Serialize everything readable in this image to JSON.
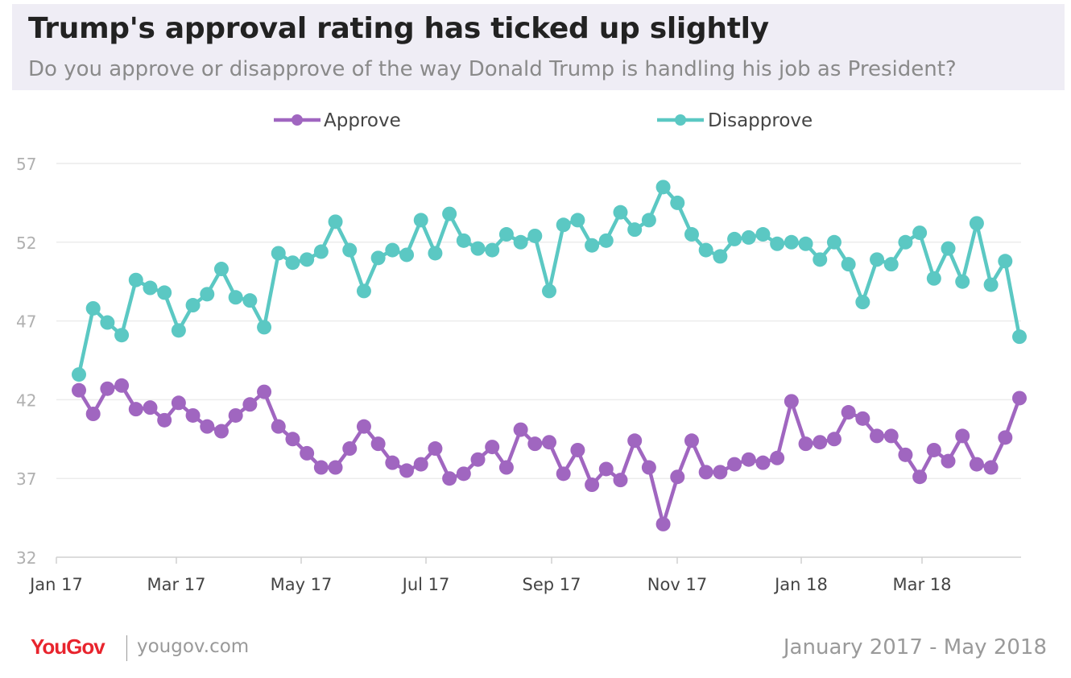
{
  "header": {
    "title": "Trump's approval rating has ticked up slightly",
    "subtitle": "Do you approve or disapprove of the way Donald Trump is handling his job as President?"
  },
  "footer": {
    "brand": "YouGov",
    "site": "yougov.com",
    "date_range": "January 2017 - May 2018"
  },
  "chart_data": {
    "type": "line",
    "title": "Trump's approval rating has ticked up slightly",
    "xlabel": "",
    "ylabel": "",
    "ylim": [
      32,
      57
    ],
    "yticks": [
      32,
      37,
      42,
      47,
      52,
      57
    ],
    "xticks": [
      "Jan 17",
      "Mar 17",
      "May 17",
      "Jul 17",
      "Sep 17",
      "Nov 17",
      "Jan 18",
      "Mar 18"
    ],
    "grid": true,
    "legend": "top-center",
    "series": [
      {
        "name": "Approve",
        "color": "#a066c0",
        "values": [
          42.6,
          41.1,
          42.7,
          42.9,
          41.4,
          41.5,
          40.7,
          41.8,
          41.0,
          40.3,
          40.0,
          41.0,
          41.7,
          42.5,
          40.3,
          39.5,
          38.6,
          37.7,
          37.7,
          38.9,
          40.3,
          39.2,
          38.0,
          37.5,
          37.9,
          38.9,
          37.0,
          37.3,
          38.2,
          39.0,
          37.7,
          40.1,
          39.2,
          39.3,
          37.3,
          38.8,
          36.6,
          37.6,
          36.9,
          39.4,
          37.7,
          34.1,
          37.1,
          39.4,
          37.4,
          37.4,
          37.9,
          38.2,
          38.0,
          38.3,
          41.9,
          39.2,
          39.3,
          39.5,
          41.2,
          40.8,
          39.7,
          39.7,
          38.5,
          37.1,
          38.8,
          38.1,
          39.7,
          37.9,
          37.7,
          39.6,
          42.1
        ]
      },
      {
        "name": "Disapprove",
        "color": "#5bc8c3",
        "values": [
          43.6,
          47.8,
          46.9,
          46.1,
          49.6,
          49.1,
          48.8,
          46.4,
          48.0,
          48.7,
          50.3,
          48.5,
          48.3,
          46.6,
          51.3,
          50.7,
          50.9,
          51.4,
          53.3,
          51.5,
          48.9,
          51.0,
          51.5,
          51.2,
          53.4,
          51.3,
          53.8,
          52.1,
          51.6,
          51.5,
          52.5,
          52.0,
          52.4,
          48.9,
          53.1,
          53.4,
          51.8,
          52.1,
          53.9,
          52.8,
          53.4,
          55.5,
          54.5,
          52.5,
          51.5,
          51.1,
          52.2,
          52.3,
          52.5,
          51.9,
          52.0,
          51.9,
          50.9,
          52.0,
          50.6,
          48.2,
          50.9,
          50.6,
          52.0,
          52.6,
          49.7,
          51.6,
          49.5,
          53.2,
          49.3,
          50.8,
          46.0
        ]
      }
    ]
  }
}
